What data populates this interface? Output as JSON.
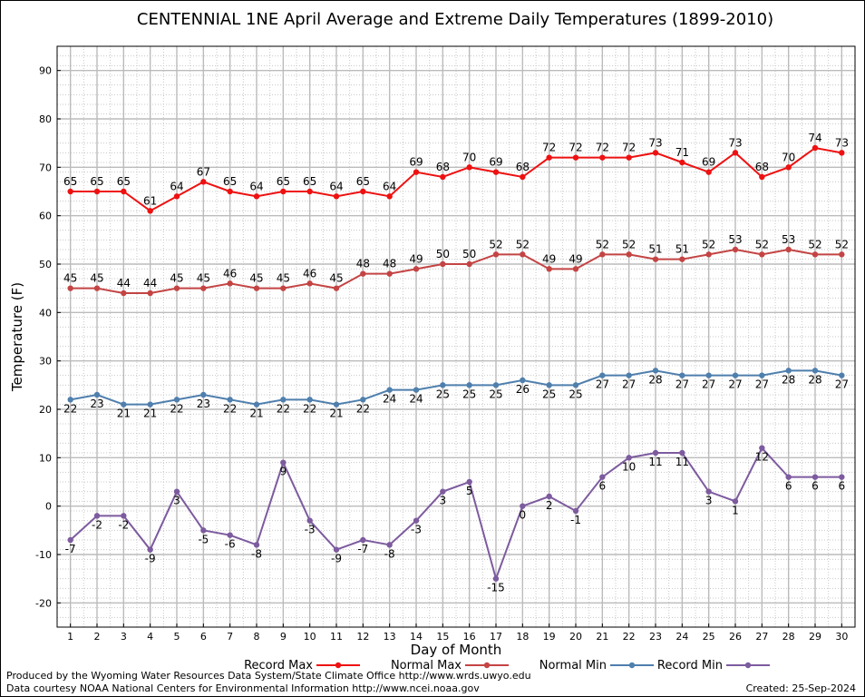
{
  "chart_data": {
    "type": "line",
    "title": "CENTENNIAL 1NE April Average and Extreme Daily Temperatures (1899-2010)",
    "xlabel": "Day of Month",
    "ylabel": "Temperature (F)",
    "x": [
      1,
      2,
      3,
      4,
      5,
      6,
      7,
      8,
      9,
      10,
      11,
      12,
      13,
      14,
      15,
      16,
      17,
      18,
      19,
      20,
      21,
      22,
      23,
      24,
      25,
      26,
      27,
      28,
      29,
      30
    ],
    "xlim": [
      0.5,
      30.5
    ],
    "ylim": [
      -25,
      95
    ],
    "yticks": [
      -20,
      -10,
      0,
      10,
      20,
      30,
      40,
      50,
      60,
      70,
      80,
      90
    ],
    "grid": true,
    "legend_position": "bottom",
    "series": [
      {
        "name": "Record Max",
        "color": "#ee1111",
        "label_pos": "above",
        "values": [
          65,
          65,
          65,
          61,
          64,
          67,
          65,
          64,
          65,
          65,
          64,
          65,
          64,
          69,
          68,
          70,
          69,
          68,
          72,
          72,
          72,
          72,
          73,
          71,
          69,
          73,
          68,
          70,
          74,
          73
        ]
      },
      {
        "name": "Normal Max",
        "color": "#c44444",
        "label_pos": "above",
        "values": [
          45,
          45,
          44,
          44,
          45,
          45,
          46,
          45,
          45,
          46,
          45,
          48,
          48,
          49,
          50,
          50,
          52,
          52,
          49,
          49,
          52,
          52,
          51,
          51,
          52,
          53,
          52,
          53,
          52,
          52
        ]
      },
      {
        "name": "Normal Min",
        "color": "#4f7fad",
        "label_pos": "below",
        "values": [
          22,
          23,
          21,
          21,
          22,
          23,
          22,
          21,
          22,
          22,
          21,
          22,
          24,
          24,
          25,
          25,
          25,
          26,
          25,
          25,
          27,
          27,
          28,
          27,
          27,
          27,
          27,
          28,
          28,
          27
        ]
      },
      {
        "name": "Record Min",
        "color": "#7d5b9f",
        "label_pos": "below",
        "values": [
          -7,
          -2,
          -2,
          -9,
          3,
          -5,
          -6,
          -8,
          9,
          -3,
          -9,
          -7,
          -8,
          -3,
          3,
          5,
          -15,
          0,
          2,
          -1,
          6,
          10,
          11,
          11,
          3,
          1,
          12,
          6,
          6,
          6
        ]
      }
    ]
  },
  "footer": {
    "line1": "Produced by the Wyoming Water Resources Data System/State Climate Office http://www.wrds.uwyo.edu",
    "line2": "Data courtesy NOAA National Centers for Environmental Information http://www.ncei.noaa.gov",
    "created": "Created:  25-Sep-2024"
  }
}
